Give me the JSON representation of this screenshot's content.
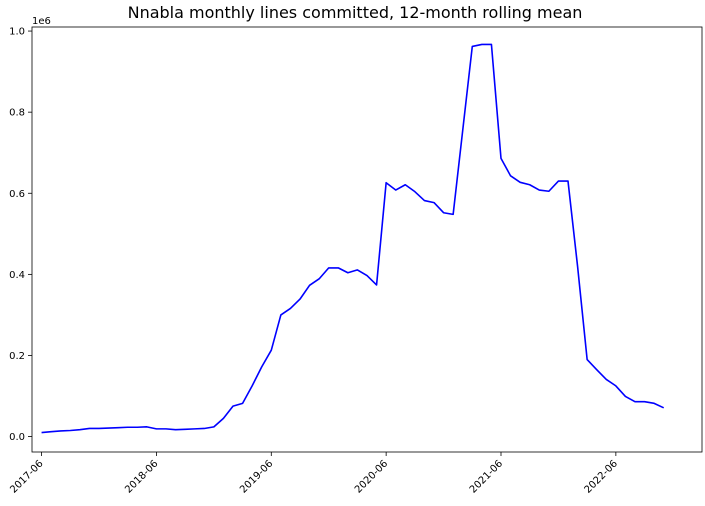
{
  "chart_data": {
    "type": "line",
    "title": "Nnabla monthly lines committed, 12-month rolling mean",
    "xlabel": "",
    "ylabel": "",
    "y_offset_label": "1e6",
    "grid": false,
    "ylim": [
      -0.038,
      1.01
    ],
    "yticks": [
      0.0,
      0.2,
      0.4,
      0.6,
      0.8,
      1.0
    ],
    "ytick_labels": [
      "0.0",
      "0.2",
      "0.4",
      "0.6",
      "0.8",
      "1.0"
    ],
    "xticks": [
      "2017-06",
      "2018-06",
      "2019-06",
      "2020-06",
      "2021-06",
      "2022-06"
    ],
    "xtick_labels": [
      "2017-06",
      "2018-06",
      "2019-06",
      "2020-06",
      "2021-06",
      "2022-06"
    ],
    "xlim": [
      "2017-05",
      "2023-03"
    ],
    "series": [
      {
        "name": "",
        "color": "#0000ff",
        "x": [
          "2017-06",
          "2017-07",
          "2017-08",
          "2017-09",
          "2017-10",
          "2017-11",
          "2017-12",
          "2018-01",
          "2018-02",
          "2018-03",
          "2018-04",
          "2018-05",
          "2018-06",
          "2018-07",
          "2018-08",
          "2018-09",
          "2018-10",
          "2018-11",
          "2018-12",
          "2019-01",
          "2019-02",
          "2019-03",
          "2019-04",
          "2019-05",
          "2019-06",
          "2019-07",
          "2019-08",
          "2019-09",
          "2019-10",
          "2019-11",
          "2019-12",
          "2020-01",
          "2020-02",
          "2020-03",
          "2020-04",
          "2020-05",
          "2020-06",
          "2020-07",
          "2020-08",
          "2020-09",
          "2020-10",
          "2020-11",
          "2020-12",
          "2021-01",
          "2021-02",
          "2021-03",
          "2021-04",
          "2021-05",
          "2021-06",
          "2021-07",
          "2021-08",
          "2021-09",
          "2021-10",
          "2021-11",
          "2021-12",
          "2022-01",
          "2022-02",
          "2022-03",
          "2022-04",
          "2022-05",
          "2022-06",
          "2022-07",
          "2022-08",
          "2022-09",
          "2022-10",
          "2022-11"
        ],
        "values": [
          0.01,
          0.012,
          0.014,
          0.015,
          0.017,
          0.02,
          0.02,
          0.021,
          0.022,
          0.023,
          0.023,
          0.024,
          0.019,
          0.019,
          0.017,
          0.018,
          0.019,
          0.02,
          0.024,
          0.045,
          0.075,
          0.082,
          0.125,
          0.172,
          0.213,
          0.3,
          0.316,
          0.339,
          0.373,
          0.389,
          0.416,
          0.416,
          0.404,
          0.411,
          0.397,
          0.374,
          0.626,
          0.608,
          0.621,
          0.604,
          0.582,
          0.577,
          0.552,
          0.548,
          0.755,
          0.962,
          0.967,
          0.967,
          0.686,
          0.643,
          0.627,
          0.621,
          0.608,
          0.605,
          0.63,
          0.63,
          0.42,
          0.19,
          0.165,
          0.141,
          0.125,
          0.099,
          0.086,
          0.086,
          0.082,
          0.071
        ]
      }
    ]
  }
}
